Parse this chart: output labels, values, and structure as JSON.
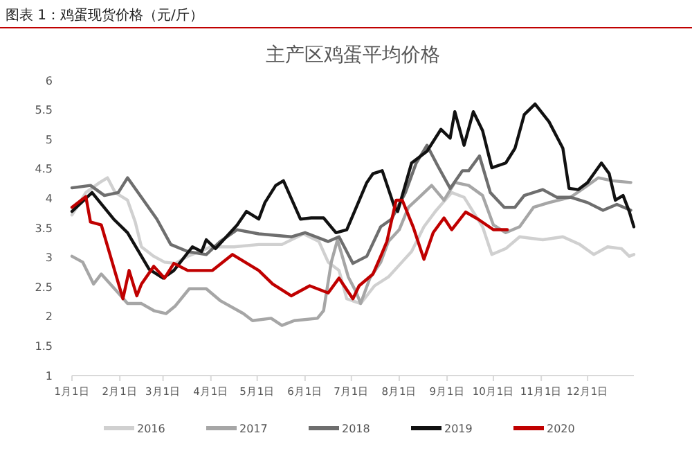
{
  "chart_data": {
    "type": "line",
    "title": "主产区鸡蛋平均价格",
    "annotations": [
      "图表 1：鸡蛋现货价格（元/斤）"
    ],
    "xlim": [
      "--01-01",
      "--12-31"
    ],
    "xticks": [
      {
        "value": "--01-01",
        "label": "1月1日"
      },
      {
        "value": "--02-01",
        "label": "2月1日"
      },
      {
        "value": "--03-01",
        "label": "3月1日"
      },
      {
        "value": "--04-01",
        "label": "4月1日"
      },
      {
        "value": "--05-01",
        "label": "5月1日"
      },
      {
        "value": "--06-01",
        "label": "6月1日"
      },
      {
        "value": "--07-01",
        "label": "7月1日"
      },
      {
        "value": "--08-01",
        "label": "8月1日"
      },
      {
        "value": "--09-01",
        "label": "9月1日"
      },
      {
        "value": "--10-01",
        "label": "10月1日"
      },
      {
        "value": "--11-01",
        "label": "11月1日"
      },
      {
        "value": "--12-01",
        "label": "12月1日"
      }
    ],
    "ylim": [
      1,
      6
    ],
    "yticks": [
      1,
      1.5,
      2,
      2.5,
      3,
      3.5,
      4,
      4.5,
      5,
      5.5,
      6
    ],
    "grid": false,
    "legend": "bottom",
    "marker": "none",
    "line_style": "solid",
    "series": [
      {
        "name": "2016",
        "color": "#d0d0d0",
        "x": [
          "--01-01",
          "--01-10",
          "--01-19",
          "--01-24",
          "--01-29",
          "--02-06",
          "--02-11",
          "--02-15",
          "--02-23",
          "--03-02",
          "--03-09",
          "--03-17",
          "--04-01",
          "--04-16",
          "--05-02",
          "--05-17",
          "--05-31",
          "--06-10",
          "--06-16",
          "--06-23",
          "--06-28",
          "--07-07",
          "--07-16",
          "--07-25",
          "--08-02",
          "--08-09",
          "--08-17",
          "--08-25",
          "--09-04",
          "--09-12",
          "--09-18",
          "--09-24",
          "--09-30",
          "--10-09",
          "--10-18",
          "--11-02",
          "--11-15",
          "--11-26",
          "--12-05",
          "--12-14",
          "--12-23",
          "--12-28",
          "--12-31"
        ],
        "values": [
          3.72,
          4.1,
          4.27,
          4.35,
          4.1,
          3.97,
          3.6,
          3.18,
          3.02,
          2.92,
          2.9,
          3.02,
          3.18,
          3.18,
          3.22,
          3.22,
          3.4,
          3.27,
          2.92,
          2.78,
          2.3,
          2.22,
          2.52,
          2.67,
          2.9,
          3.1,
          3.52,
          3.8,
          4.1,
          4.02,
          3.77,
          3.52,
          3.05,
          3.15,
          3.35,
          3.3,
          3.35,
          3.22,
          3.05,
          3.18,
          3.15,
          3.02,
          3.05
        ]
      },
      {
        "name": "2017",
        "color": "#a6a6a6",
        "x": [
          "--01-01",
          "--01-08",
          "--01-15",
          "--01-20",
          "--01-31",
          "--02-06",
          "--02-15",
          "--02-23",
          "--03-03",
          "--03-09",
          "--03-18",
          "--03-29",
          "--04-07",
          "--04-22",
          "--04-28",
          "--05-10",
          "--05-17",
          "--05-25",
          "--06-09",
          "--06-13",
          "--06-18",
          "--06-22",
          "--06-29",
          "--07-04",
          "--07-07",
          "--07-13",
          "--07-20",
          "--07-25",
          "--08-01",
          "--08-07",
          "--08-14",
          "--08-22",
          "--08-30",
          "--09-06",
          "--09-15",
          "--09-24",
          "--10-01",
          "--10-09",
          "--10-18",
          "--10-27",
          "--11-06",
          "--11-20",
          "--12-01",
          "--12-08",
          "--12-17",
          "--12-29"
        ],
        "values": [
          3.02,
          2.92,
          2.55,
          2.72,
          2.4,
          2.22,
          2.22,
          2.1,
          2.05,
          2.18,
          2.47,
          2.47,
          2.27,
          2.05,
          1.93,
          1.97,
          1.85,
          1.93,
          1.97,
          2.1,
          2.92,
          3.3,
          2.67,
          2.42,
          2.22,
          2.65,
          2.92,
          3.27,
          3.47,
          3.85,
          4.02,
          4.22,
          3.97,
          4.27,
          4.22,
          4.05,
          3.55,
          3.42,
          3.52,
          3.85,
          3.93,
          4.02,
          4.22,
          4.35,
          4.3,
          4.27
        ]
      },
      {
        "name": "2018",
        "color": "#6e6e6e",
        "x": [
          "--01-01",
          "--01-13",
          "--01-22",
          "--01-31",
          "--02-06",
          "--02-15",
          "--02-25",
          "--03-06",
          "--03-17",
          "--03-29",
          "--04-07",
          "--04-18",
          "--05-02",
          "--05-23",
          "--06-01",
          "--06-16",
          "--06-23",
          "--06-27",
          "--07-02",
          "--07-11",
          "--07-20",
          "--07-27",
          "--08-05",
          "--08-12",
          "--08-19",
          "--08-26",
          "--09-03",
          "--09-11",
          "--09-15",
          "--09-22",
          "--09-29",
          "--10-08",
          "--10-15",
          "--10-21",
          "--11-02",
          "--11-11",
          "--11-20",
          "--12-01",
          "--12-11",
          "--12-20",
          "--12-29"
        ],
        "values": [
          4.18,
          4.22,
          4.05,
          4.1,
          4.35,
          4.02,
          3.65,
          3.22,
          3.1,
          3.05,
          3.27,
          3.47,
          3.4,
          3.35,
          3.42,
          3.27,
          3.35,
          3.15,
          2.9,
          3.02,
          3.52,
          3.65,
          4.1,
          4.6,
          4.9,
          4.55,
          4.17,
          4.47,
          4.47,
          4.72,
          4.1,
          3.85,
          3.85,
          4.05,
          4.15,
          4.02,
          4.02,
          3.93,
          3.8,
          3.9,
          3.8
        ]
      },
      {
        "name": "2019",
        "color": "#111111",
        "x": [
          "--01-01",
          "--01-14",
          "--01-28",
          "--02-06",
          "--02-20",
          "--03-01",
          "--03-08",
          "--03-20",
          "--03-26",
          "--03-29",
          "--04-04",
          "--04-18",
          "--04-24",
          "--05-02",
          "--05-06",
          "--05-13",
          "--05-18",
          "--05-29",
          "--06-05",
          "--06-13",
          "--06-21",
          "--06-28",
          "--07-11",
          "--07-15",
          "--07-21",
          "--07-29",
          "--07-31",
          "--08-09",
          "--08-19",
          "--08-28",
          "--09-03",
          "--09-06",
          "--09-12",
          "--09-18",
          "--09-24",
          "--09-30",
          "--10-09",
          "--10-15",
          "--10-21",
          "--10-28",
          "--11-06",
          "--11-15",
          "--11-19",
          "--11-25",
          "--12-01",
          "--12-10",
          "--12-15",
          "--12-19",
          "--12-24",
          "--12-28",
          "--12-31"
        ],
        "values": [
          3.78,
          4.1,
          3.65,
          3.42,
          2.8,
          2.65,
          2.78,
          3.18,
          3.1,
          3.3,
          3.15,
          3.55,
          3.78,
          3.65,
          3.93,
          4.22,
          4.3,
          3.65,
          3.67,
          3.67,
          3.42,
          3.47,
          4.27,
          4.42,
          4.47,
          3.85,
          3.78,
          4.6,
          4.8,
          5.17,
          5.02,
          5.47,
          4.9,
          5.47,
          5.15,
          4.52,
          4.6,
          4.85,
          5.42,
          5.6,
          5.3,
          4.85,
          4.17,
          4.15,
          4.27,
          4.6,
          4.42,
          3.97,
          4.05,
          3.78,
          3.52
        ]
      },
      {
        "name": "2020",
        "color": "#c00000",
        "x": [
          "--01-01",
          "--01-10",
          "--01-13",
          "--01-20",
          "--02-03",
          "--02-07",
          "--02-12",
          "--02-15",
          "--02-23",
          "--03-02",
          "--03-08",
          "--03-17",
          "--04-02",
          "--04-15",
          "--05-02",
          "--05-11",
          "--05-23",
          "--06-04",
          "--06-16",
          "--06-23",
          "--07-02",
          "--07-06",
          "--07-15",
          "--07-20",
          "--07-24",
          "--07-30",
          "--08-03",
          "--08-10",
          "--08-17",
          "--08-23",
          "--08-30",
          "--09-04",
          "--09-13",
          "--09-21",
          "--10-01",
          "--10-10"
        ],
        "values": [
          3.85,
          4.03,
          3.6,
          3.55,
          2.3,
          2.78,
          2.35,
          2.55,
          2.85,
          2.65,
          2.9,
          2.78,
          2.78,
          3.05,
          2.78,
          2.55,
          2.35,
          2.52,
          2.4,
          2.65,
          2.3,
          2.52,
          2.72,
          3.02,
          3.27,
          3.97,
          3.97,
          3.52,
          2.97,
          3.42,
          3.67,
          3.47,
          3.77,
          3.65,
          3.47,
          3.47
        ]
      }
    ]
  }
}
